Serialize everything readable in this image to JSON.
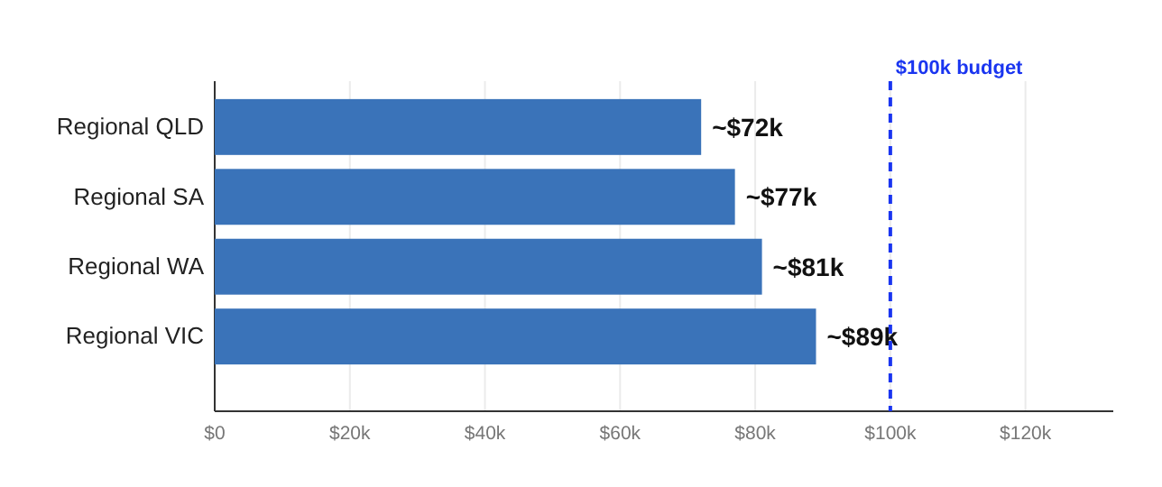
{
  "chart_data": {
    "type": "bar",
    "orientation": "horizontal",
    "categories": [
      "Regional QLD",
      "Regional SA",
      "Regional WA",
      "Regional VIC"
    ],
    "values": [
      72000,
      77000,
      81000,
      89000
    ],
    "color": "#3a73b9",
    "value_labels": [
      "~$72k",
      "~$77k",
      "~$81k",
      "~$89k"
    ],
    "xlim": [
      0,
      133000
    ],
    "xticks": [
      {
        "value": 0,
        "label": "$0"
      },
      {
        "value": 20000,
        "label": "$20k"
      },
      {
        "value": 40000,
        "label": "$40k"
      },
      {
        "value": 60000,
        "label": "$60k"
      },
      {
        "value": 80000,
        "label": "$80k"
      },
      {
        "value": 100000,
        "label": "$100k"
      },
      {
        "value": 120000,
        "label": "$120k"
      }
    ],
    "grid": "x",
    "ref_lines": [
      {
        "axis": "x",
        "value": 100000,
        "label": "$100k budget",
        "color": "#1a35f0",
        "line_style": "dashed"
      }
    ]
  }
}
